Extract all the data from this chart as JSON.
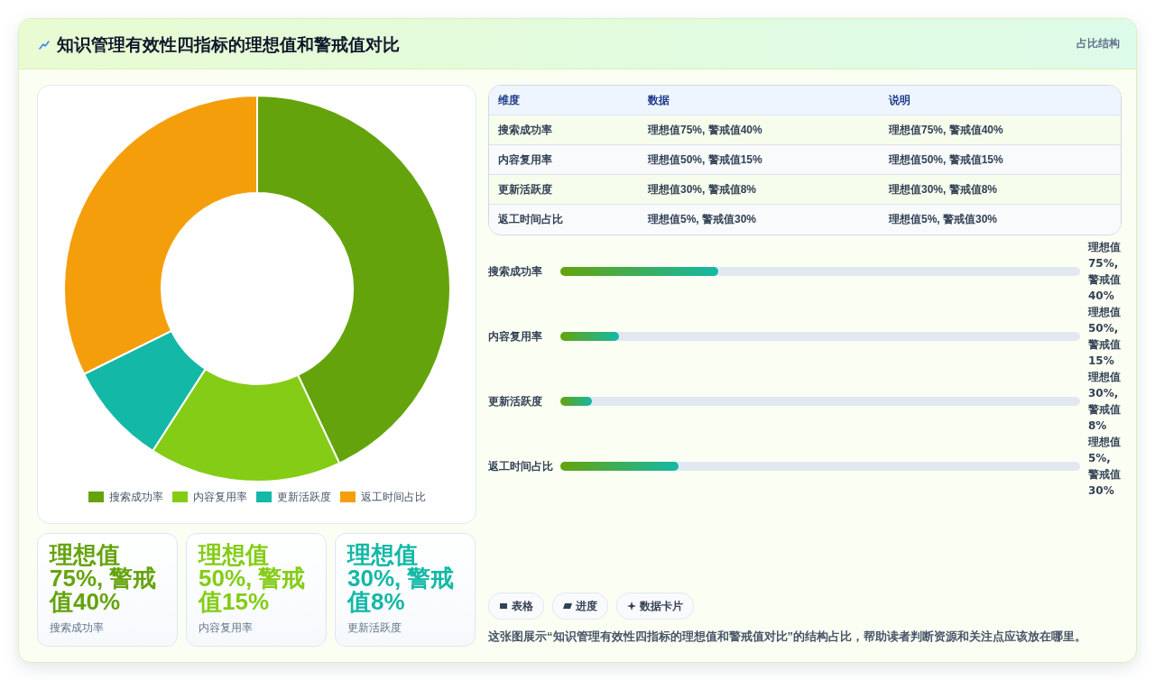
{
  "chart_data": [
    {
      "type": "other",
      "title": "知识管理有效性四指标的理想值和警戒值对比",
      "subtitle": "占比结构"
    },
    {
      "type": "donut",
      "categories": [
        "搜索成功率",
        "内容复用率",
        "更新活跃度",
        "返工时间占比"
      ],
      "values": [
        43,
        16.1,
        8.6,
        32.3
      ],
      "colors": [
        "#65a30d",
        "#84cc16",
        "#14b8a6",
        "#f59e0b"
      ],
      "legend": "bottom"
    },
    {
      "type": "other",
      "annotations": [
        "维度",
        "数据",
        "说明",
        "搜索成功率",
        "理想值75%, 警戒值40%",
        "理想值75%, 警戒值40%",
        "内容复用率",
        "理想值50%, 警戒值15%",
        "理想值50%, 警戒值15%",
        "更新活跃度",
        "理想值30%, 警戒值8%",
        "理想值30%, 警戒值8%",
        "返工时间占比",
        "理想值5%, 警戒值30%",
        "理想值5%, 警戒值30%"
      ]
    },
    {
      "type": "bar",
      "orientation": "horizontal",
      "categories": [
        "搜索成功率",
        "内容复用率",
        "更新活跃度",
        "返工时间占比"
      ],
      "values": [
        40,
        15,
        8,
        30
      ],
      "value_labels": [
        "理想值75%, 警戒值40%",
        "理想值50%, 警戒值15%",
        "理想值30%, 警戒值8%",
        "理想值5%, 警戒值30%"
      ],
      "color": "#65a30d",
      "xlim": [
        0,
        132
      ],
      "tick_labels": "y"
    },
    {
      "type": "other",
      "annotations": [
        "理想值75%, 警戒值40%",
        "搜索成功率"
      ],
      "color": "#65a30d"
    },
    {
      "type": "other",
      "annotations": [
        "理想值50%, 警戒值15%",
        "内容复用率"
      ],
      "color": "#84cc16"
    },
    {
      "type": "other",
      "annotations": [
        "理想值30%, 警戒值8%",
        "更新活跃度"
      ],
      "color": "#14b8a6"
    },
    {
      "type": "other",
      "annotations": [
        "表格",
        "进度",
        "数据卡片",
        "这张图展示“知识管理有效性四指标的理想值和警戒值对比”的结构占比，帮助读者判断资源和关注点应该放在哪里。"
      ]
    }
  ]
}
